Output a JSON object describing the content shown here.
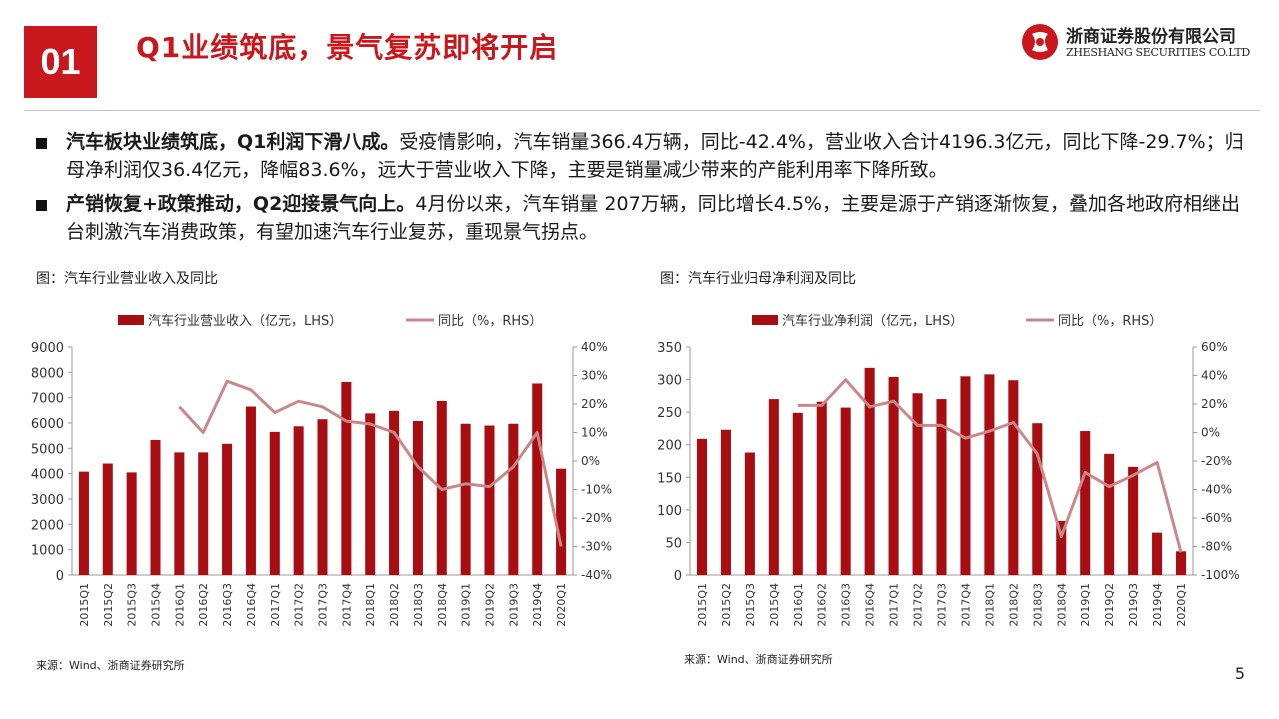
{
  "header": {
    "section_number": "01",
    "title": "Q1业绩筑底，景气复苏即将开启",
    "logo_cn": "浙商证券股份有限公司",
    "logo_en": "ZHESHANG SECURITIES CO.LTD",
    "brand_color": "#c8181e"
  },
  "bullets": [
    {
      "bold": "汽车板块业绩筑底，Q1利润下滑八成。",
      "text": "受疫情影响，汽车销量366.4万辆，同比-42.4%，营业收入合计4196.3亿元，同比下降-29.7%；归母净利润仅36.4亿元，降幅83.6%，远大于营业收入下降，主要是销量减少带来的产能利用率下降所致。"
    },
    {
      "bold": "产销恢复+政策推动，Q2迎接景气向上。",
      "text": "4月份以来，汽车销量 207万辆，同比增长4.5%，主要是源于产销逐渐恢复，叠加各地政府相继出台刺激汽车消费政策，有望加速汽车行业复苏，重现景气拐点。"
    }
  ],
  "charts": [
    {
      "caption": "图：汽车行业营业收入及同比",
      "source": "来源：Wind、浙商证券研究所"
    },
    {
      "caption": "图：汽车行业归母净利润及同比",
      "source": "来源：Wind、浙商证券研究所"
    }
  ],
  "page_number": "5",
  "chart_data": [
    {
      "type": "bar",
      "categories": [
        "2015Q1",
        "2015Q2",
        "2015Q3",
        "2015Q4",
        "2016Q1",
        "2016Q2",
        "2016Q3",
        "2016Q4",
        "2017Q1",
        "2017Q2",
        "2017Q3",
        "2017Q4",
        "2018Q1",
        "2018Q2",
        "2018Q3",
        "2018Q4",
        "2019Q1",
        "2019Q2",
        "2019Q3",
        "2019Q4",
        "2020Q1"
      ],
      "series": [
        {
          "name": "汽车行业营业收入（亿元，LHS）",
          "kind": "bar",
          "axis": "left",
          "color": "#a80d12",
          "values": [
            4080,
            4400,
            4050,
            5330,
            4840,
            4840,
            5180,
            6650,
            5650,
            5870,
            6150,
            7620,
            6380,
            6480,
            6080,
            6870,
            5970,
            5900,
            5970,
            7560,
            4196
          ]
        },
        {
          "name": "同比（%，RHS）",
          "kind": "line",
          "axis": "right",
          "color": "#c9888a",
          "values": [
            null,
            null,
            null,
            null,
            19,
            10,
            28,
            25,
            17,
            21,
            19,
            14,
            13,
            10,
            -2,
            -10,
            -8,
            -9,
            -2,
            10,
            -30
          ]
        }
      ],
      "ylim_left": [
        0,
        9000
      ],
      "yticks_left": [
        0,
        1000,
        2000,
        3000,
        4000,
        5000,
        6000,
        7000,
        8000,
        9000
      ],
      "ylim_right": [
        -40,
        40
      ],
      "yticks_right": [
        "-40%",
        "-30%",
        "-20%",
        "-10%",
        "0%",
        "10%",
        "20%",
        "30%",
        "40%"
      ],
      "legend": "top",
      "grid": false
    },
    {
      "type": "bar",
      "categories": [
        "2015Q1",
        "2015Q2",
        "2015Q3",
        "2015Q4",
        "2016Q1",
        "2016Q2",
        "2016Q3",
        "2016Q4",
        "2017Q1",
        "2017Q2",
        "2017Q3",
        "2017Q4",
        "2018Q1",
        "2018Q2",
        "2018Q3",
        "2018Q4",
        "2019Q1",
        "2019Q2",
        "2019Q3",
        "2019Q4",
        "2020Q1"
      ],
      "series": [
        {
          "name": "汽车行业净利润（亿元，LHS）",
          "kind": "bar",
          "axis": "left",
          "color": "#a80d12",
          "values": [
            209,
            223,
            188,
            270,
            249,
            266,
            257,
            318,
            304,
            279,
            270,
            305,
            308,
            299,
            233,
            83,
            221,
            186,
            166,
            65,
            36.4
          ]
        },
        {
          "name": "同比（%，RHS）",
          "kind": "line",
          "axis": "right",
          "color": "#c9888a",
          "values": [
            null,
            null,
            null,
            null,
            19,
            19,
            37,
            18,
            22,
            5,
            5,
            -4,
            1,
            7,
            -15,
            -73,
            -28,
            -38,
            -30,
            -21,
            -84
          ]
        }
      ],
      "ylim_left": [
        0,
        350
      ],
      "yticks_left": [
        0,
        50,
        100,
        150,
        200,
        250,
        300,
        350
      ],
      "ylim_right": [
        -100,
        60
      ],
      "yticks_right": [
        "-100%",
        "-80%",
        "-60%",
        "-40%",
        "-20%",
        "0%",
        "20%",
        "40%",
        "60%"
      ],
      "legend": "top",
      "grid": false
    }
  ]
}
